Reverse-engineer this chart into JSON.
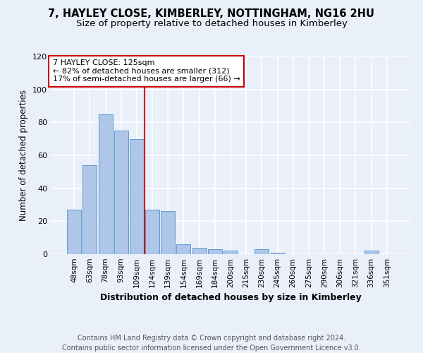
{
  "title": "7, HAYLEY CLOSE, KIMBERLEY, NOTTINGHAM, NG16 2HU",
  "subtitle": "Size of property relative to detached houses in Kimberley",
  "xlabel": "Distribution of detached houses by size in Kimberley",
  "ylabel": "Number of detached properties",
  "categories": [
    "48sqm",
    "63sqm",
    "78sqm",
    "93sqm",
    "109sqm",
    "124sqm",
    "139sqm",
    "154sqm",
    "169sqm",
    "184sqm",
    "200sqm",
    "215sqm",
    "230sqm",
    "245sqm",
    "260sqm",
    "275sqm",
    "290sqm",
    "306sqm",
    "321sqm",
    "336sqm",
    "351sqm"
  ],
  "values": [
    27,
    54,
    85,
    75,
    70,
    27,
    26,
    6,
    4,
    3,
    2,
    0,
    3,
    1,
    0,
    0,
    0,
    0,
    0,
    2,
    0
  ],
  "bar_color": "#aec6e8",
  "bar_edge_color": "#5b9bd5",
  "vline_index": 5,
  "annotation_line1": "7 HAYLEY CLOSE: 125sqm",
  "annotation_line2": "← 82% of detached houses are smaller (312)",
  "annotation_line3": "17% of semi-detached houses are larger (66) →",
  "annotation_box_color": "#ffffff",
  "annotation_box_edge_color": "#cc0000",
  "vline_color": "#cc0000",
  "ylim": [
    0,
    120
  ],
  "yticks": [
    0,
    20,
    40,
    60,
    80,
    100,
    120
  ],
  "footer_line1": "Contains HM Land Registry data © Crown copyright and database right 2024.",
  "footer_line2": "Contains public sector information licensed under the Open Government Licence v3.0.",
  "background_color": "#eaf0f9",
  "plot_background_color": "#eaf0f9",
  "grid_color": "#ffffff",
  "title_fontsize": 10.5,
  "subtitle_fontsize": 9.5,
  "footer_fontsize": 7
}
